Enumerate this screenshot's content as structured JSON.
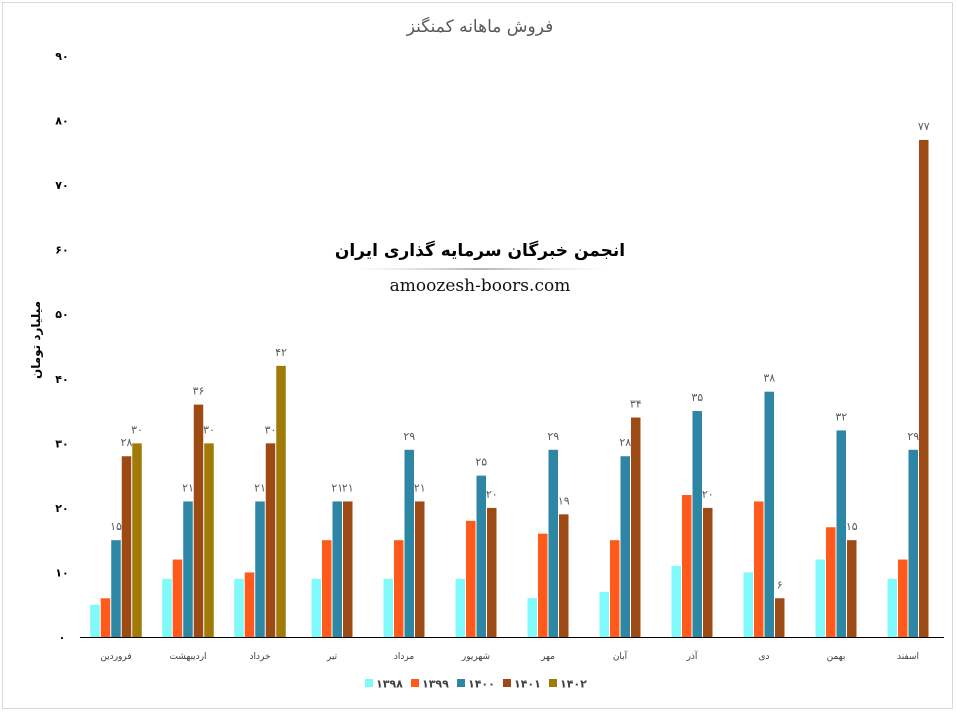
{
  "chart_data": {
    "type": "bar",
    "title": "فروش ماهانه کمنگنز",
    "ylabel": "میلیارد تومان",
    "xlabel": "",
    "ylim": [
      0,
      90
    ],
    "yticks": [
      0,
      10,
      20,
      30,
      40,
      50,
      60,
      70,
      80,
      90
    ],
    "ytick_labels": [
      "۰",
      "۱۰",
      "۲۰",
      "۳۰",
      "۴۰",
      "۵۰",
      "۶۰",
      "۷۰",
      "۸۰",
      "۹۰"
    ],
    "grid": false,
    "legend_position": "bottom",
    "categories": [
      "فروردین",
      "اردیبهشت",
      "خرداد",
      "تیر",
      "مرداد",
      "شهریور",
      "مهر",
      "آبان",
      "آذر",
      "دی",
      "بهمن",
      "اسفند"
    ],
    "series": [
      {
        "name": "۱۳۹۸",
        "color": "#7ff9f9",
        "values": [
          5,
          9,
          9,
          9,
          9,
          9,
          6,
          7,
          11,
          10,
          12,
          9
        ],
        "labels": [
          null,
          null,
          null,
          null,
          null,
          null,
          null,
          null,
          null,
          null,
          null,
          null
        ]
      },
      {
        "name": "۱۳۹۹",
        "color": "#ff5a1c",
        "values": [
          6,
          12,
          10,
          15,
          15,
          18,
          16,
          15,
          22,
          21,
          17,
          12
        ],
        "labels": [
          null,
          null,
          null,
          null,
          null,
          null,
          null,
          null,
          null,
          null,
          null,
          null
        ]
      },
      {
        "name": "۱۴۰۰",
        "color": "#2e86a5",
        "values": [
          15,
          21,
          21,
          21,
          29,
          25,
          29,
          28,
          35,
          38,
          32,
          29
        ],
        "labels": [
          "۱۵",
          "۲۱",
          "۲۱",
          "۲۱",
          "۲۹",
          "۲۵",
          "۲۹",
          "۲۸",
          "۳۵",
          "۳۸",
          "۳۲",
          "۲۹"
        ]
      },
      {
        "name": "۱۴۰۱",
        "color": "#9e4a14",
        "values": [
          28,
          36,
          30,
          21,
          21,
          20,
          19,
          34,
          20,
          6,
          15,
          77
        ],
        "labels": [
          "۲۸",
          "۳۶",
          "۳۰",
          "۲۱",
          "۲۱",
          "۲۰",
          "۱۹",
          "۳۴",
          "۲۰",
          "۶",
          "۱۵",
          "۷۷"
        ]
      },
      {
        "name": "۱۴۰۲",
        "color": "#a07b08",
        "values": [
          30,
          30,
          42,
          null,
          null,
          null,
          null,
          null,
          null,
          null,
          null,
          null
        ],
        "labels": [
          "۳۰",
          "۳۰",
          "۴۲",
          null,
          null,
          null,
          null,
          null,
          null,
          null,
          null,
          null
        ]
      }
    ]
  },
  "watermark": {
    "title": "انجمن خبرگان سرمایه گذاری ایران",
    "url": "amoozesh-boors.com"
  }
}
